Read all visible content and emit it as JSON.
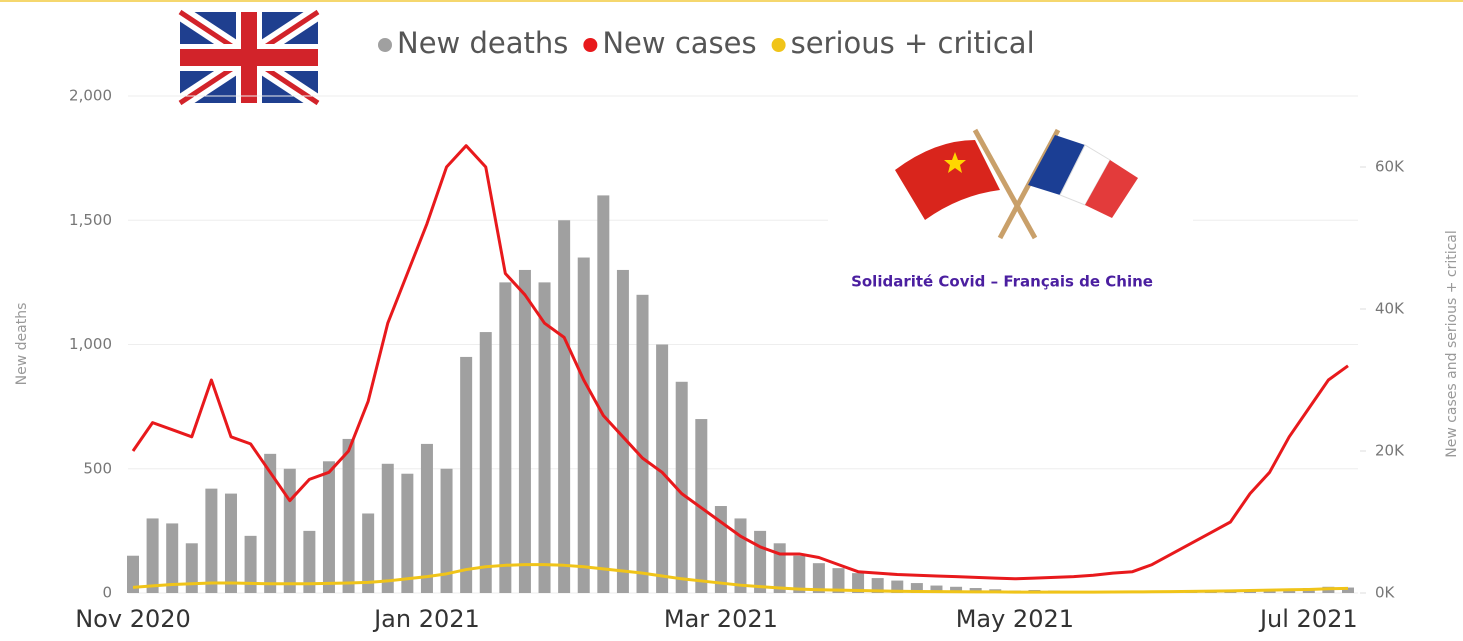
{
  "chart_data": {
    "type": "bar",
    "legend": [
      "New deaths",
      "New cases",
      "serious + critical"
    ],
    "ylabel": "New deaths",
    "y2label": "New cases and serious + critical",
    "badge_text": "Solidarité Covid – Français de Chine",
    "categories": [
      "Nov 2020",
      null,
      null,
      null,
      null,
      null,
      null,
      null,
      null,
      null,
      null,
      null,
      null,
      null,
      null,
      "Jan 2021",
      null,
      null,
      null,
      null,
      null,
      null,
      null,
      null,
      null,
      null,
      null,
      null,
      null,
      null,
      "Mar 2021",
      null,
      null,
      null,
      null,
      null,
      null,
      null,
      null,
      null,
      null,
      null,
      null,
      null,
      null,
      "May 2021",
      null,
      null,
      null,
      null,
      null,
      null,
      null,
      null,
      null,
      null,
      null,
      null,
      null,
      null,
      "Jul 2021",
      null,
      null
    ],
    "ylim": [
      0,
      2000
    ],
    "yticks": [
      0,
      500,
      {
        "value": 1000,
        "label": "1,000"
      },
      {
        "value": 1500,
        "label": "1,500"
      },
      {
        "value": 2000,
        "label": "2,000"
      }
    ],
    "y2lim": [
      0,
      70000
    ],
    "y2ticks": [
      {
        "value": 0,
        "label": "0K"
      },
      {
        "value": 20000,
        "label": "20K"
      },
      {
        "value": 40000,
        "label": "40K"
      },
      {
        "value": 60000,
        "label": "60K"
      }
    ],
    "grid": true,
    "series": [
      {
        "name": "New deaths",
        "type": "bar",
        "color": "#a0a0a0",
        "axis": "y",
        "values": [
          150,
          300,
          280,
          200,
          420,
          400,
          230,
          560,
          500,
          250,
          530,
          620,
          320,
          520,
          480,
          600,
          500,
          950,
          1050,
          1250,
          1300,
          1250,
          1500,
          1350,
          1600,
          1300,
          1200,
          1000,
          850,
          700,
          350,
          300,
          250,
          200,
          150,
          120,
          100,
          80,
          60,
          50,
          40,
          30,
          25,
          20,
          15,
          10,
          12,
          10,
          8,
          7,
          8,
          6,
          5,
          5,
          6,
          8,
          10,
          12,
          15,
          18,
          20,
          25,
          22
        ]
      },
      {
        "name": "New cases",
        "type": "line",
        "color": "#e8191c",
        "axis": "y2",
        "values": [
          20000,
          24000,
          23000,
          22000,
          30000,
          22000,
          21000,
          17000,
          13000,
          16000,
          17000,
          20000,
          27000,
          38000,
          45000,
          52000,
          60000,
          63000,
          60000,
          45000,
          42000,
          38000,
          36000,
          30000,
          25000,
          22000,
          19000,
          17000,
          14000,
          12000,
          10000,
          8000,
          6500,
          5500,
          5500,
          5000,
          4000,
          3000,
          2800,
          2600,
          2500,
          2400,
          2300,
          2200,
          2100,
          2000,
          2100,
          2200,
          2300,
          2500,
          2800,
          3000,
          4000,
          5500,
          7000,
          8500,
          10000,
          14000,
          17000,
          22000,
          26000,
          30000,
          32000
        ]
      },
      {
        "name": "serious + critical",
        "type": "line",
        "color": "#f0c419",
        "axis": "y2",
        "values": [
          800,
          1000,
          1200,
          1300,
          1400,
          1400,
          1350,
          1300,
          1300,
          1300,
          1350,
          1400,
          1500,
          1700,
          2000,
          2300,
          2700,
          3300,
          3700,
          3900,
          4000,
          4000,
          3900,
          3700,
          3400,
          3100,
          2800,
          2400,
          2000,
          1700,
          1400,
          1100,
          900,
          700,
          550,
          450,
          400,
          350,
          300,
          250,
          220,
          200,
          180,
          160,
          150,
          130,
          120,
          120,
          120,
          130,
          140,
          150,
          170,
          200,
          230,
          260,
          300,
          350,
          400,
          450,
          500,
          600,
          650
        ]
      }
    ]
  }
}
